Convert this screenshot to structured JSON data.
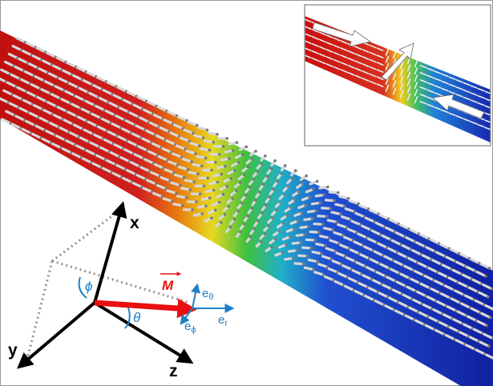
{
  "diagram": {
    "axes": [
      {
        "label": "x"
      },
      {
        "label": "y"
      },
      {
        "label": "z"
      }
    ],
    "vector": {
      "label": "M"
    },
    "angles": [
      "ϕ",
      "θ"
    ],
    "unit_vectors": [
      {
        "base": "e",
        "sub": "θ"
      },
      {
        "base": "e",
        "sub": "ϕ"
      },
      {
        "base": "e",
        "sub": "r"
      }
    ]
  }
}
